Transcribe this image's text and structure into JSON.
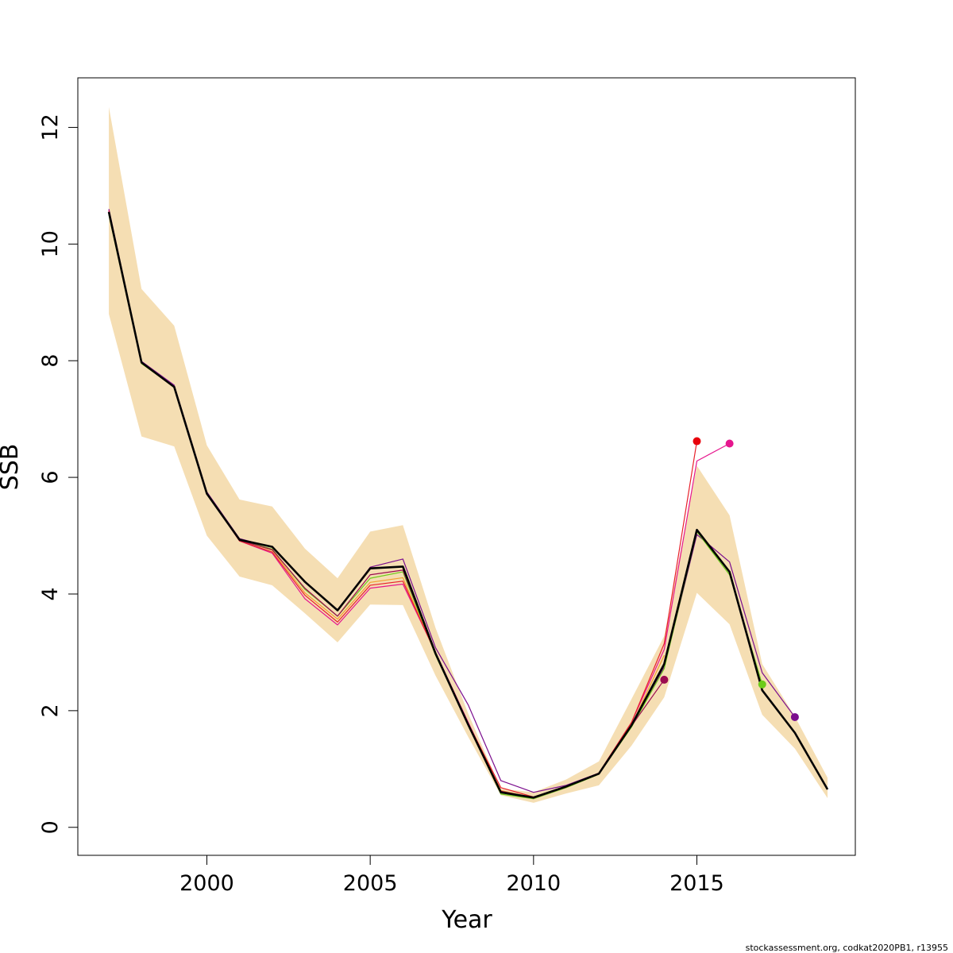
{
  "chart_data": {
    "type": "line",
    "title": "",
    "xlabel": "Year",
    "ylabel": "SSB",
    "xlim": [
      1996.05,
      2019.85
    ],
    "ylim": [
      -0.48,
      12.85
    ],
    "x_ticks": [
      2000,
      2005,
      2010,
      2015
    ],
    "x_tick_labels": [
      "2000",
      "2005",
      "2010",
      "2015"
    ],
    "y_ticks": [
      0,
      2,
      4,
      6,
      8,
      10,
      12
    ],
    "y_tick_labels": [
      "0",
      "2",
      "4",
      "6",
      "8",
      "10",
      "12"
    ],
    "grid": false,
    "legend": "none",
    "band": {
      "color": "#F5DEB3",
      "x": [
        1997,
        1998,
        1999,
        2000,
        2001,
        2002,
        2003,
        2004,
        2005,
        2006,
        2007,
        2008,
        2009,
        2010,
        2011,
        2012,
        2013,
        2014,
        2015,
        2016,
        2017,
        2018,
        2019
      ],
      "lower": [
        8.8,
        6.7,
        6.53,
        5.0,
        4.3,
        4.15,
        3.67,
        3.17,
        3.82,
        3.81,
        2.6,
        1.55,
        0.55,
        0.42,
        0.58,
        0.72,
        1.4,
        2.23,
        4.02,
        3.48,
        1.93,
        1.35,
        0.5
      ],
      "upper": [
        12.35,
        9.23,
        8.6,
        6.55,
        5.62,
        5.5,
        4.78,
        4.27,
        5.07,
        5.18,
        3.42,
        1.95,
        0.66,
        0.6,
        0.82,
        1.13,
        2.2,
        3.28,
        6.2,
        5.35,
        2.8,
        1.9,
        0.85
      ]
    },
    "series": [
      {
        "color": "#000000",
        "width": 2.6,
        "x": [
          1997,
          1998,
          1999,
          2000,
          2001,
          2002,
          2003,
          2004,
          2005,
          2006,
          2007,
          2008,
          2009,
          2010,
          2011,
          2012,
          2013,
          2014,
          2015,
          2016,
          2017,
          2018,
          2019
        ],
        "values": [
          10.55,
          7.97,
          7.55,
          5.72,
          4.93,
          4.81,
          4.21,
          3.72,
          4.44,
          4.47,
          2.98,
          1.76,
          0.6,
          0.51,
          0.7,
          0.92,
          1.75,
          2.8,
          5.1,
          4.38,
          2.35,
          1.62,
          0.65
        ]
      },
      {
        "color": "#7B0E8E",
        "width": 1.2,
        "x": [
          1997,
          1998,
          1999,
          2000,
          2001,
          2002,
          2003,
          2004,
          2005,
          2006,
          2007,
          2008,
          2009,
          2010,
          2011,
          2012,
          2013,
          2014,
          2015,
          2016,
          2017,
          2018
        ],
        "values": [
          10.6,
          7.99,
          7.58,
          5.75,
          4.95,
          4.8,
          4.2,
          3.72,
          4.46,
          4.6,
          3.08,
          2.1,
          0.8,
          0.6,
          0.72,
          0.93,
          1.75,
          2.75,
          5.02,
          4.55,
          2.65,
          1.89
        ]
      },
      {
        "color": "#6CCB1A",
        "width": 1.2,
        "x": [
          1997,
          1998,
          1999,
          2000,
          2001,
          2002,
          2003,
          2004,
          2005,
          2006,
          2007,
          2008,
          2009,
          2010,
          2011,
          2012,
          2013,
          2014,
          2015,
          2016,
          2017
        ],
        "values": [
          10.5,
          7.95,
          7.55,
          5.72,
          4.92,
          4.77,
          4.08,
          3.62,
          4.27,
          4.38,
          2.95,
          1.76,
          0.57,
          0.49,
          0.68,
          0.91,
          1.72,
          2.72,
          5.07,
          4.33,
          2.45
        ]
      },
      {
        "color": "#E6168E",
        "width": 1.2,
        "x": [
          1997,
          1998,
          1999,
          2000,
          2001,
          2002,
          2003,
          2004,
          2005,
          2006,
          2007,
          2008,
          2009,
          2010,
          2011,
          2012,
          2013,
          2014,
          2015,
          2016
        ],
        "values": [
          10.58,
          7.97,
          7.56,
          5.73,
          4.91,
          4.7,
          3.92,
          3.47,
          4.1,
          4.17,
          3.0,
          1.8,
          0.62,
          0.5,
          0.69,
          0.93,
          1.8,
          3.05,
          6.28,
          6.58
        ]
      },
      {
        "color": "#F2A030",
        "width": 1.2,
        "x": [
          1997,
          1998,
          1999,
          2000,
          2001,
          2002,
          2003,
          2004,
          2005,
          2006,
          2007,
          2008,
          2009,
          2010,
          2011,
          2012,
          2013,
          2014
        ],
        "values": [
          10.55,
          7.96,
          7.55,
          5.73,
          4.92,
          4.75,
          4.02,
          3.57,
          4.2,
          4.28,
          2.97,
          1.77,
          0.63,
          0.51,
          0.7,
          0.92,
          1.75,
          2.95
        ]
      },
      {
        "color": "#E8202A",
        "width": 1.2,
        "x": [
          1997,
          1998,
          1999,
          2000,
          2001,
          2002,
          2003,
          2004,
          2005,
          2006,
          2007,
          2008,
          2009,
          2010,
          2011,
          2012,
          2013,
          2014,
          2015
        ],
        "values": [
          10.57,
          7.97,
          7.56,
          5.73,
          4.91,
          4.72,
          3.98,
          3.52,
          4.15,
          4.22,
          2.99,
          1.78,
          0.68,
          0.52,
          0.69,
          0.93,
          1.8,
          3.15,
          6.62
        ]
      },
      {
        "color": "#9B0B50",
        "width": 1.2,
        "x": [
          1997,
          1998,
          1999,
          2000,
          2001,
          2002,
          2003,
          2004,
          2005,
          2006,
          2007,
          2008,
          2009,
          2010,
          2011,
          2012,
          2013,
          2014
        ],
        "values": [
          10.56,
          7.96,
          7.55,
          5.73,
          4.92,
          4.76,
          4.1,
          3.62,
          4.33,
          4.41,
          2.98,
          1.76,
          0.62,
          0.51,
          0.7,
          0.92,
          1.74,
          2.53
        ]
      }
    ],
    "points": [
      {
        "x": 2014,
        "y": 2.53,
        "color": "#9B0B50"
      },
      {
        "x": 2015,
        "y": 6.62,
        "color": "#E8000B"
      },
      {
        "x": 2016,
        "y": 6.58,
        "color": "#E6168E"
      },
      {
        "x": 2017,
        "y": 2.45,
        "color": "#6CCB1A"
      },
      {
        "x": 2018,
        "y": 1.89,
        "color": "#7B0E8E"
      }
    ]
  },
  "footer": "stockassessment.org, codkat2020PB1, r13955"
}
